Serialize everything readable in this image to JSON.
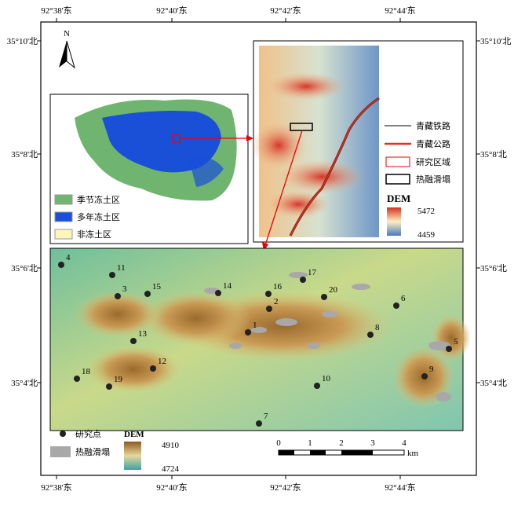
{
  "north_arrow": "N",
  "longitude_labels": [
    "92°38'东",
    "92°40'东",
    "92°42'东",
    "92°44'东"
  ],
  "latitude_labels": [
    "35°10'北",
    "35°8'北",
    "35°6'北",
    "35°4'北"
  ],
  "overview_legend": [
    "季节冻土区",
    "多年冻土区",
    "非冻土区"
  ],
  "dem_inset_legend": {
    "items": [
      "青藏铁路",
      "青藏公路",
      "研究区域",
      "热融滑塌"
    ],
    "dem_title": "DEM",
    "dem_max": 5472,
    "dem_min": 4459
  },
  "study_points": [
    "1",
    "2",
    "3",
    "4",
    "5",
    "6",
    "7",
    "8",
    "9",
    "10",
    "11",
    "12",
    "13",
    "14",
    "15",
    "16",
    "17",
    "18",
    "19",
    "20"
  ],
  "main_legend": {
    "point": "研究点",
    "slump": "热融滑塌",
    "dem_title": "DEM",
    "dem_max": 4910,
    "dem_min": 4724
  },
  "scale_bar": {
    "ticks": [
      0,
      1,
      2,
      3,
      4
    ],
    "unit": "km"
  }
}
